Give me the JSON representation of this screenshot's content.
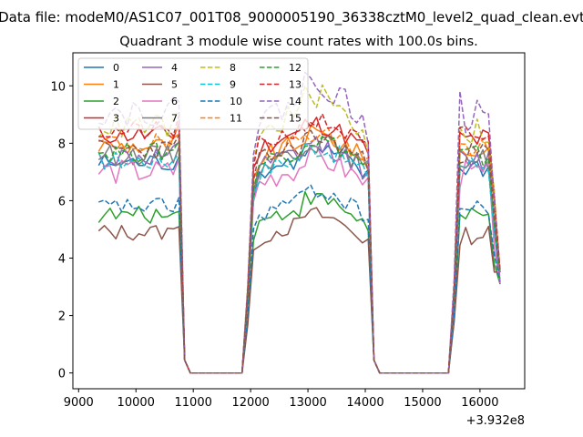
{
  "chart_data": {
    "type": "line",
    "suptitle": "Data file: modeM0/AS1C07_001T08_9000005190_36338cztM0_level2_quad_clean.evt",
    "title": "Quadrant 3 module wise count rates with 100.0s bins.",
    "xlabel": "",
    "ylabel": "",
    "x_offset_label": "+3.932e8",
    "xlim": [
      8900,
      16780
    ],
    "ylim": [
      -0.55,
      11.15
    ],
    "xticks": [
      9000,
      10000,
      11000,
      12000,
      13000,
      14000,
      15000,
      16000
    ],
    "xtick_labels": [
      "9000",
      "10000",
      "11000",
      "12000",
      "13000",
      "14000",
      "15000",
      "16000"
    ],
    "yticks": [
      0,
      2,
      4,
      6,
      8,
      10
    ],
    "ytick_labels": [
      "0",
      "2",
      "4",
      "6",
      "8",
      "10"
    ],
    "legend_position": "upper-left",
    "segments": [
      {
        "start": 9350,
        "bins": 15,
        "base": "orbit1"
      },
      {
        "start": 10850,
        "bins": 1,
        "base": "drop"
      },
      {
        "start": 10950,
        "bins": 10,
        "base": "zero"
      },
      {
        "start": 11950,
        "bins": 1,
        "base": "rise"
      },
      {
        "start": 12050,
        "bins": 21,
        "base": "orbit2"
      },
      {
        "start": 14150,
        "bins": 1,
        "base": "drop"
      },
      {
        "start": 14250,
        "bins": 13,
        "base": "zero"
      },
      {
        "start": 15550,
        "bins": 1,
        "base": "rise"
      },
      {
        "start": 15650,
        "bins": 8,
        "base": "orbit3"
      }
    ],
    "series": [
      {
        "name": "0",
        "color": "#1f77b4",
        "dash": "solid",
        "level": 7.3,
        "amp": 0.35,
        "seed": 1
      },
      {
        "name": "1",
        "color": "#ff7f0e",
        "dash": "solid",
        "level": 7.9,
        "amp": 0.35,
        "seed": 2
      },
      {
        "name": "2",
        "color": "#2ca02c",
        "dash": "solid",
        "level": 5.5,
        "amp": 0.3,
        "seed": 3
      },
      {
        "name": "3",
        "color": "#d62728",
        "dash": "solid",
        "level": 8.3,
        "amp": 0.35,
        "seed": 4
      },
      {
        "name": "4",
        "color": "#9467bd",
        "dash": "solid",
        "level": 7.5,
        "amp": 0.4,
        "seed": 5
      },
      {
        "name": "5",
        "color": "#8c564b",
        "dash": "solid",
        "level": 4.9,
        "amp": 0.3,
        "seed": 6
      },
      {
        "name": "6",
        "color": "#e377c2",
        "dash": "solid",
        "level": 7.0,
        "amp": 0.45,
        "seed": 7
      },
      {
        "name": "7",
        "color": "#7f7f7f",
        "dash": "solid",
        "level": 7.6,
        "amp": 0.35,
        "seed": 8
      },
      {
        "name": "8",
        "color": "#bcbd22",
        "dash": "dashed",
        "level": 8.6,
        "amp": 0.45,
        "seed": 9
      },
      {
        "name": "9",
        "color": "#17becf",
        "dash": "dashed",
        "level": 7.4,
        "amp": 0.35,
        "seed": 10
      },
      {
        "name": "10",
        "color": "#1f77b4",
        "dash": "dashed",
        "level": 5.8,
        "amp": 0.3,
        "seed": 11
      },
      {
        "name": "11",
        "color": "#ff7f0e",
        "dash": "dashed",
        "level": 8.0,
        "amp": 0.35,
        "seed": 12
      },
      {
        "name": "12",
        "color": "#2ca02c",
        "dash": "dashed",
        "level": 7.7,
        "amp": 0.35,
        "seed": 13
      },
      {
        "name": "13",
        "color": "#d62728",
        "dash": "dashed",
        "level": 8.4,
        "amp": 0.35,
        "seed": 14
      },
      {
        "name": "14",
        "color": "#9467bd",
        "dash": "dashed",
        "level": 9.1,
        "amp": 0.5,
        "seed": 15
      },
      {
        "name": "15",
        "color": "#8c564b",
        "dash": "dashed",
        "level": 7.8,
        "amp": 0.35,
        "seed": 16
      }
    ]
  }
}
